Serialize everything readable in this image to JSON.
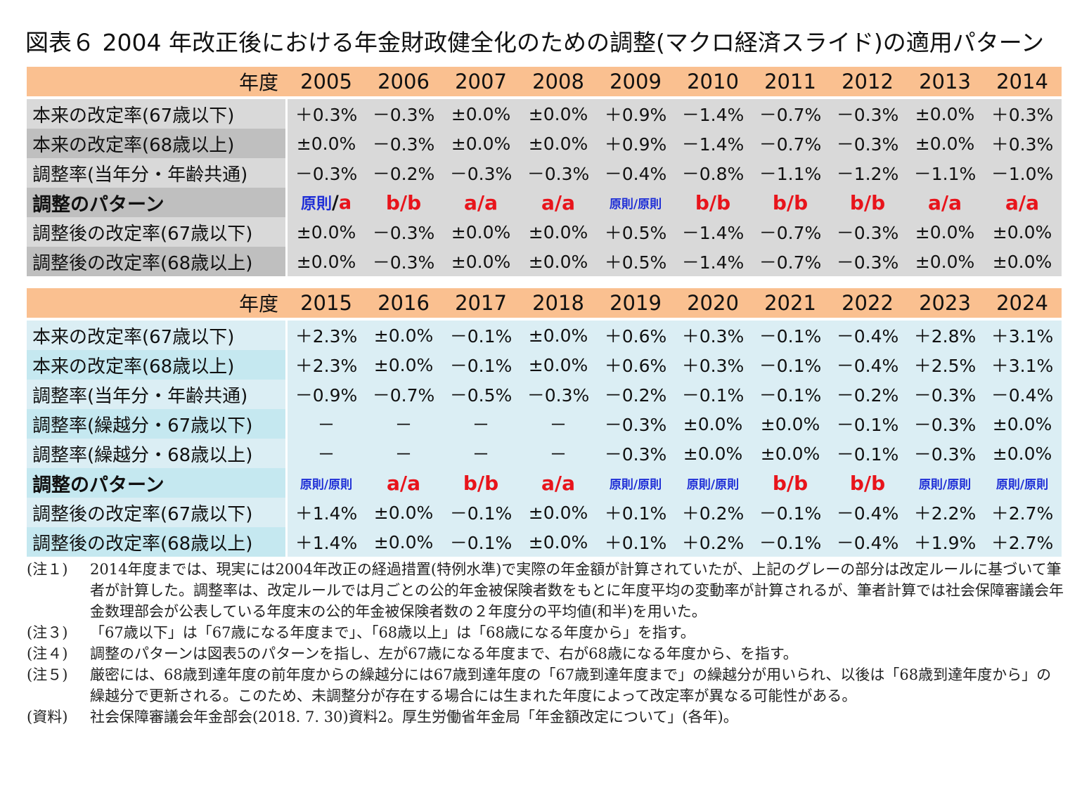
{
  "title": "図表６ 2004 年改正後における年金財政健全化のための調整(マクロ経済スライド)の適用パターン",
  "table1": {
    "header_label": "年度",
    "years": [
      "2005",
      "2006",
      "2007",
      "2008",
      "2009",
      "2010",
      "2011",
      "2012",
      "2013",
      "2014"
    ],
    "rows": [
      {
        "label": "本来の改定率(67歳以下)",
        "values": [
          "＋0.3%",
          "－0.3%",
          "±0.0%",
          "±0.0%",
          "＋0.9%",
          "－1.4%",
          "－0.7%",
          "－0.3%",
          "±0.0%",
          "＋0.3%"
        ]
      },
      {
        "label": "本来の改定率(68歳以上)",
        "values": [
          "±0.0%",
          "－0.3%",
          "±0.0%",
          "±0.0%",
          "＋0.9%",
          "－1.4%",
          "－0.7%",
          "－0.3%",
          "±0.0%",
          "＋0.3%"
        ]
      },
      {
        "label": "調整率(当年分・年齢共通)",
        "values": [
          "－0.3%",
          "－0.2%",
          "－0.3%",
          "－0.3%",
          "－0.4%",
          "－0.8%",
          "－1.1%",
          "－1.2%",
          "－1.1%",
          "－1.0%"
        ]
      }
    ],
    "pattern_label": "調整のパターン",
    "patterns": [
      "原則/a",
      "b/b",
      "a/a",
      "a/a",
      "原則/原則",
      "b/b",
      "b/b",
      "b/b",
      "a/a",
      "a/a"
    ],
    "after_rows": [
      {
        "label": "調整後の改定率(67歳以下)",
        "values": [
          "±0.0%",
          "－0.3%",
          "±0.0%",
          "±0.0%",
          "＋0.5%",
          "－1.4%",
          "－0.7%",
          "－0.3%",
          "±0.0%",
          "±0.0%"
        ]
      },
      {
        "label": "調整後の改定率(68歳以上)",
        "values": [
          "±0.0%",
          "－0.3%",
          "±0.0%",
          "±0.0%",
          "＋0.5%",
          "－1.4%",
          "－0.7%",
          "－0.3%",
          "±0.0%",
          "±0.0%"
        ]
      }
    ]
  },
  "table2": {
    "header_label": "年度",
    "years": [
      "2015",
      "2016",
      "2017",
      "2018",
      "2019",
      "2020",
      "2021",
      "2022",
      "2023",
      "2024"
    ],
    "rows": [
      {
        "label": "本来の改定率(67歳以下)",
        "values": [
          "＋2.3%",
          "±0.0%",
          "－0.1%",
          "±0.0%",
          "＋0.6%",
          "＋0.3%",
          "－0.1%",
          "－0.4%",
          "＋2.8%",
          "＋3.1%"
        ]
      },
      {
        "label": "本来の改定率(68歳以上)",
        "values": [
          "＋2.3%",
          "±0.0%",
          "－0.1%",
          "±0.0%",
          "＋0.6%",
          "＋0.3%",
          "－0.1%",
          "－0.4%",
          "＋2.5%",
          "＋3.1%"
        ]
      },
      {
        "label": "調整率(当年分・年齢共通)",
        "values": [
          "－0.9%",
          "－0.7%",
          "－0.5%",
          "－0.3%",
          "－0.2%",
          "－0.1%",
          "－0.1%",
          "－0.2%",
          "－0.3%",
          "－0.4%"
        ]
      },
      {
        "label": "調整率(繰越分・67歳以下)",
        "values": [
          "－",
          "－",
          "－",
          "－",
          "－0.3%",
          "±0.0%",
          "±0.0%",
          "－0.1%",
          "－0.3%",
          "±0.0%"
        ]
      },
      {
        "label": "調整率(繰越分・68歳以上)",
        "values": [
          "－",
          "－",
          "－",
          "－",
          "－0.3%",
          "±0.0%",
          "±0.0%",
          "－0.1%",
          "－0.3%",
          "±0.0%"
        ]
      }
    ],
    "pattern_label": "調整のパターン",
    "patterns": [
      "原則/原則",
      "a/a",
      "b/b",
      "a/a",
      "原則/原則",
      "原則/原則",
      "b/b",
      "b/b",
      "原則/原則",
      "原則/原則"
    ],
    "after_rows": [
      {
        "label": "調整後の改定率(67歳以下)",
        "values": [
          "＋1.4%",
          "±0.0%",
          "－0.1%",
          "±0.0%",
          "＋0.1%",
          "＋0.2%",
          "－0.1%",
          "－0.4%",
          "＋2.2%",
          "＋2.7%"
        ]
      },
      {
        "label": "調整後の改定率(68歳以上)",
        "values": [
          "＋1.4%",
          "±0.0%",
          "－0.1%",
          "±0.0%",
          "＋0.1%",
          "＋0.2%",
          "－0.1%",
          "－0.4%",
          "＋1.9%",
          "＋2.7%"
        ]
      }
    ]
  },
  "notes": [
    {
      "key": "(注１)",
      "text": "2014年度までは、現実には2004年改正の経過措置(特例水準)で実際の年金額が計算されていたが、上記のグレーの部分は改定ルールに基づいて筆者が計算した。調整率は、改定ルールでは月ごとの公的年金被保険者数をもとに年度平均の変動率が計算されるが、筆者計算では社会保障審議会年金数理部会が公表している年度末の公的年金被保険者数の２年度分の平均値(和半)を用いた。"
    },
    {
      "key": "(注３)",
      "text": "「67歳以下」は「67歳になる年度まで」、「68歳以上」は「68歳になる年度から」を指す。"
    },
    {
      "key": "(注４)",
      "text": "調整のパターンは図表5のパターンを指し、左が67歳になる年度まで、右が68歳になる年度から、を指す。"
    },
    {
      "key": "(注５)",
      "text": "厳密には、68歳到達年度の前年度からの繰越分には67歳到達年度の「67歳到達年度まで」の繰越分が用いられ、以後は「68歳到達年度から」の繰越分で更新される。このため、未調整分が存在する場合には生まれた年度によって改定率が異なる可能性がある。"
    },
    {
      "key": "(資料)",
      "text": "社会保障審議会年金部会(2018. 7. 30)資料2。厚生労働省年金局「年金額改定について」(各年)。"
    }
  ]
}
